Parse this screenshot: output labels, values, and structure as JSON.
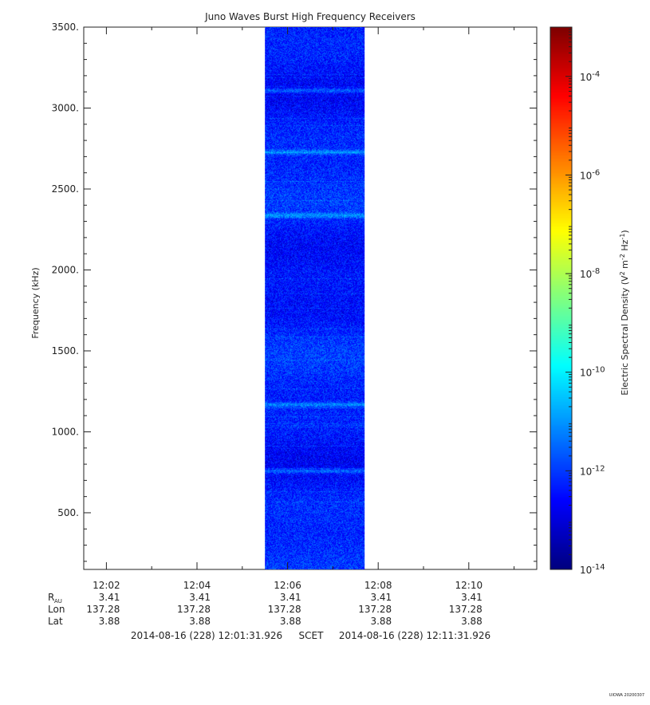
{
  "chart_data": {
    "type": "heatmap",
    "title": "Juno Waves Burst High Frequency Receivers",
    "ylabel": "Frequency (kHz)",
    "ylim": [
      150,
      3500
    ],
    "yticks": [
      "500.",
      "1000.",
      "1500.",
      "2000.",
      "2500.",
      "3000.",
      "3500."
    ],
    "ytick_values": [
      500,
      1000,
      1500,
      2000,
      2500,
      3000,
      3500
    ],
    "x_axis": {
      "start_minutes": [
        12,
        1.5
      ],
      "end_minutes": [
        12,
        11.5
      ],
      "tick_labels": [
        "12:02",
        "12:04",
        "12:06",
        "12:08",
        "12:10"
      ],
      "tick_times": [
        "12:02",
        "12:04",
        "12:06",
        "12:08",
        "12:10"
      ]
    },
    "data_window": {
      "start": "12:05:30",
      "end": "12:07:42"
    },
    "colorbar": {
      "label": "Electric Spectral Density (V² m⁻² Hz⁻¹)",
      "scale": "log",
      "range": [
        1e-14,
        0.001
      ],
      "tick_labels": [
        "10-14",
        "10-12",
        "10-10",
        "10-8",
        "10-6",
        "10-4"
      ],
      "tick_exponents": [
        -14,
        -12,
        -10,
        -8,
        -6,
        -4
      ]
    },
    "bright_bands_khz": [
      3110,
      2730,
      2340,
      1170,
      760
    ],
    "background_level_log10": -12.3
  },
  "ephemeris": {
    "rows": [
      {
        "label": "R",
        "sub": "AU",
        "values": [
          "3.41",
          "3.41",
          "3.41",
          "3.41",
          "3.41"
        ]
      },
      {
        "label": "Lon",
        "sub": "",
        "values": [
          "137.28",
          "137.28",
          "137.28",
          "137.28",
          "137.28"
        ]
      },
      {
        "label": "Lat",
        "sub": "",
        "values": [
          "3.88",
          "3.88",
          "3.88",
          "3.88",
          "3.88"
        ]
      }
    ]
  },
  "time_range": {
    "start": "2014-08-16 (228) 12:01:31.926",
    "middle": "SCET",
    "end": "2014-08-16 (228) 12:11:31.926"
  },
  "footer": {
    "stamp": "UIOWA 20200307"
  },
  "colors": {
    "axis": "#222222",
    "background": "#ffffff"
  }
}
